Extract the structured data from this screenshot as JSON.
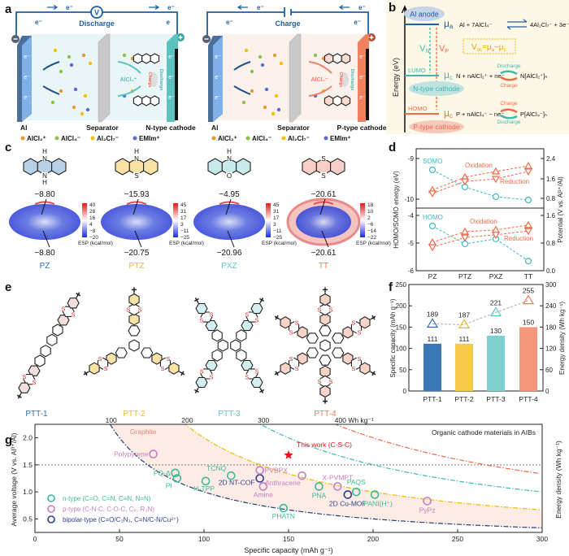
{
  "panel_labels": {
    "a": "a",
    "b": "b",
    "c": "c",
    "d": "d",
    "e": "e",
    "f": "f",
    "g": "g"
  },
  "panel_a": {
    "left": {
      "mode": "Discharge",
      "electron": "e⁻",
      "electron_plain": "e",
      "voltmeter": "V",
      "anode": "Al",
      "separator": "Separator",
      "cathode": "N-type cathode",
      "ion": "AlCl₂⁺",
      "charge": "Charge",
      "discharge": "Discharge",
      "color": "#5cc3c0",
      "bg": "#eaf5f8"
    },
    "right": {
      "mode": "Charge",
      "electron": "e⁻",
      "electron_plain": "e⁻",
      "anode": "Al",
      "separator": "Separator",
      "cathode": "P-type cathode",
      "ion": "AlCl₄⁻",
      "charge": "Charge",
      "discharge": "Discharge",
      "color": "#f08060",
      "bg": "#fbf1ec"
    },
    "legend": [
      "AlCl₂⁺",
      "AlCl₄⁻",
      "Al₂Cl₇⁻",
      "EMIm⁺"
    ]
  },
  "panel_b": {
    "y_label": "Energy (eV)",
    "anode": "Al anode",
    "mu": "μ",
    "sub_a": "a",
    "sub_c": "c",
    "eq_anode_left": "Al + 7AlCl₄⁻",
    "eq_anode_right": "4Al₂Cl₇⁻ + 3e⁻",
    "vn": "V",
    "vn_sub": "N",
    "vp": "V",
    "vp_sub": "P",
    "voc": "V",
    "voc_sub": "oc",
    "voc_rest": "=μ",
    "voc_a": "a",
    "voc_minus": "−μ",
    "voc_c": "c",
    "lumo": "LUMO",
    "homo": "HOMO",
    "n_cathode": "N-type cathode",
    "p_cathode": "P-type cathode",
    "eq_n": "N + nAlCl₂⁺ + ne⁻",
    "prod_n": "N[AlCl₂⁺]ₙ",
    "eq_p": "P + nAlCl₄⁻ − ne⁻",
    "prod_p": "P[AlCl₄⁻]ₙ",
    "discharge": "Discharge",
    "charge": "Charge",
    "colors": {
      "anode": "#1f5fa0",
      "n": "#3fb8b0",
      "p": "#ee6a48",
      "box": "#f2b705"
    }
  },
  "panel_c": {
    "esp_label": "ESP (kcal/mol)",
    "molecules": [
      {
        "name": "PZ",
        "color": "#2e6db4",
        "fill": "#b8d0e6",
        "top_atom": "N",
        "top_h": "H",
        "bottom_atom": "N",
        "bottom_h": "H",
        "esp_top": "−8.80",
        "esp_bottom": "−8.80",
        "colorbar": [
          "40",
          "28",
          "16",
          "4",
          "−8",
          "−20"
        ]
      },
      {
        "name": "PTZ",
        "color": "#f0b82a",
        "fill": "#f8e2a6",
        "top_atom": "N",
        "top_h": "H",
        "bottom_atom": "S",
        "bottom_h": "",
        "esp_top": "−15.93",
        "esp_bottom": "−20.75",
        "colorbar": [
          "45",
          "31",
          "17",
          "3",
          "−11",
          "−25"
        ]
      },
      {
        "name": "PXZ",
        "color": "#5cc3c8",
        "fill": "#c9eaea",
        "top_atom": "N",
        "top_h": "H",
        "bottom_atom": "O",
        "bottom_h": "",
        "esp_top": "−4.95",
        "esp_bottom": "−20.96",
        "colorbar": [
          "45",
          "31",
          "17",
          "3",
          "−11",
          "−25"
        ]
      },
      {
        "name": "TT",
        "color": "#ef7a5a",
        "fill": "#f8cfc6",
        "top_atom": "S",
        "top_h": "",
        "bottom_atom": "S",
        "bottom_h": "",
        "esp_top": "−20.61",
        "esp_bottom": "−20.61",
        "colorbar": [
          "18",
          "10",
          "2",
          "−6",
          "−14",
          "−22"
        ]
      }
    ]
  },
  "panel_e": {
    "polymers": [
      {
        "name": "PTT-1",
        "color": "#2e6db4",
        "fill": "#f3dede"
      },
      {
        "name": "PTT-2",
        "color": "#f0b82a",
        "fill": "#f8e2a6"
      },
      {
        "name": "PTT-3",
        "color": "#5cc3c8",
        "fill": "#d3eeee"
      },
      {
        "name": "PTT-4",
        "color": "#ef7a5a",
        "fill": "#f8d3c8"
      }
    ],
    "sulfur": "S"
  },
  "chart_data": [
    {
      "id": "d",
      "type": "line",
      "categories": [
        "PZ",
        "PTZ",
        "PXZ",
        "TT"
      ],
      "ylabel": "HOMO/SOMO energy (eV)",
      "y2label": "Potential (V vs. Al³⁺/Al)",
      "upper": {
        "ylim": [
          -10.2,
          -8.75
        ],
        "yticks": [
          "-9",
          "-10"
        ],
        "y2lim": [
          0.55,
          2.65
        ],
        "y2ticks": [
          "2.4",
          "1.6",
          "0.8"
        ],
        "orbital": {
          "name": "SOMO",
          "values": [
            -9.28,
            -9.7,
            -9.94,
            -10.02
          ]
        },
        "oxidation": {
          "name": "Oxidation",
          "values": [
            1.13,
            1.65,
            1.88,
            2.1
          ]
        },
        "reduction": {
          "name": "Reduction",
          "values": [
            1.0,
            1.48,
            1.58,
            1.88
          ]
        }
      },
      "lower": {
        "ylim": [
          -6.0,
          -3.7
        ],
        "yticks": [
          "-4",
          "-5",
          "-6"
        ],
        "y2lim": [
          0,
          1.7
        ],
        "y2ticks": [
          "1.6",
          "0.8",
          "0.0"
        ],
        "orbital": {
          "name": "HOMO",
          "values": [
            -4.38,
            -5.03,
            -4.85,
            -5.65
          ]
        },
        "oxidation": {
          "name": "Oxidation",
          "values": [
            0.82,
            1.13,
            1.18,
            1.32
          ]
        },
        "reduction": {
          "name": "Reduction",
          "values": [
            0.68,
            0.96,
            1.04,
            1.15
          ]
        }
      },
      "colors": {
        "orbital": "#3fb8c0",
        "redox": "#ee6a48"
      }
    },
    {
      "id": "f",
      "type": "bar",
      "categories": [
        "PTT-1",
        "PTT-2",
        "PTT-3",
        "PTT-4"
      ],
      "series": [
        {
          "axis": "left",
          "values": [
            111,
            111,
            130,
            150
          ],
          "labels": [
            "111",
            "111",
            "130",
            "150"
          ],
          "colors": [
            "#3a78b5",
            "#f7c948",
            "#7fd0d0",
            "#f5977a"
          ]
        },
        {
          "axis": "right",
          "values": [
            189,
            187,
            221,
            255
          ],
          "labels": [
            "189",
            "187",
            "221",
            "255"
          ],
          "colors": [
            "#2e6db4",
            "#f0b82a",
            "#5cc3c8",
            "#ef7a5a"
          ]
        }
      ],
      "ylabel": "Specific capacity (mAh g⁻¹)",
      "ylim": [
        0,
        250
      ],
      "yticks": [
        "0",
        "50",
        "100",
        "150",
        "200",
        "250"
      ],
      "y2label": "Energy density (Wh kg⁻¹)",
      "y2lim": [
        0,
        300
      ],
      "y2ticks": [
        "0",
        "60",
        "120",
        "180",
        "240",
        "300"
      ]
    },
    {
      "id": "g",
      "type": "scatter",
      "title": "Organic cathode materials in AIBs",
      "xlabel": "Specific capacity (mAh g⁻¹)",
      "ylabel": "Average voltage (V vs. Al³⁺/Al)",
      "y2label": "Energy density (Wh kg⁻¹)",
      "xlim": [
        0,
        300
      ],
      "ylim": [
        0.25,
        2.25
      ],
      "xticks": [
        "0",
        "50",
        "100",
        "150",
        "200",
        "250",
        "300"
      ],
      "yticks": [
        "0.5",
        "1.0",
        "1.5",
        "2.0"
      ],
      "reference_line": 1.5,
      "energy_curves": [
        {
          "value": 100,
          "label": "100",
          "color": "#1f3d7a"
        },
        {
          "value": 200,
          "label": "200",
          "color": "#f2b705"
        },
        {
          "value": 300,
          "label": "300",
          "color": "#3fb8c0"
        },
        {
          "value": 400,
          "label": "400 Wh kg⁻¹",
          "color": "#ee6a48"
        }
      ],
      "legend": [
        {
          "key": "n",
          "label": "n-type (C=O, C=N, C≡N, N=N)",
          "color": "#3fb89a"
        },
        {
          "key": "p",
          "label": "p-type (C-N-C, C-O-C, Cₚ, R₃N)",
          "color": "#c57fc0"
        },
        {
          "key": "b",
          "label": "bipolar-type (C=O/C₃N₃, C=N/C-N/Cu²⁺)",
          "color": "#2d3e8c"
        }
      ],
      "annotation": "Graphite",
      "points": [
        {
          "label": "Polypyrene",
          "type": "p",
          "x": 70,
          "y": 1.7
        },
        {
          "label": "PQ-Δ",
          "type": "n",
          "x": 83,
          "y": 1.35
        },
        {
          "label": "PI",
          "type": "n",
          "x": 84,
          "y": 1.25
        },
        {
          "label": "H₂TPP",
          "type": "n",
          "x": 101,
          "y": 1.2
        },
        {
          "label": "TCNQ",
          "type": "n",
          "x": 116,
          "y": 1.3
        },
        {
          "label": "2D NT-COF",
          "type": "b",
          "x": 133,
          "y": 1.25
        },
        {
          "label": "PVBPX",
          "type": "p",
          "x": 133,
          "y": 1.4
        },
        {
          "label": "Amine",
          "type": "p",
          "x": 135,
          "y": 1.1
        },
        {
          "label": "PHATN",
          "type": "n",
          "x": 147,
          "y": 0.7
        },
        {
          "label": "Anthracene",
          "type": "p",
          "x": 158,
          "y": 1.3
        },
        {
          "label": "PNA",
          "type": "n",
          "x": 168,
          "y": 1.1
        },
        {
          "label": "X-PVMPT",
          "type": "p",
          "x": 179,
          "y": 1.1
        },
        {
          "label": "2D Cu-MOF",
          "type": "b",
          "x": 185,
          "y": 0.95
        },
        {
          "label": "PAQS",
          "type": "n",
          "x": 190,
          "y": 1.0
        },
        {
          "label": "PANI(H⁺)",
          "type": "n",
          "x": 201,
          "y": 0.95
        },
        {
          "label": "PyPz",
          "type": "p",
          "x": 232,
          "y": 0.83
        }
      ],
      "highlight": {
        "label": "This work (C-S-C)",
        "x": 150,
        "y": 1.68,
        "color": "#e8141c"
      }
    }
  ]
}
